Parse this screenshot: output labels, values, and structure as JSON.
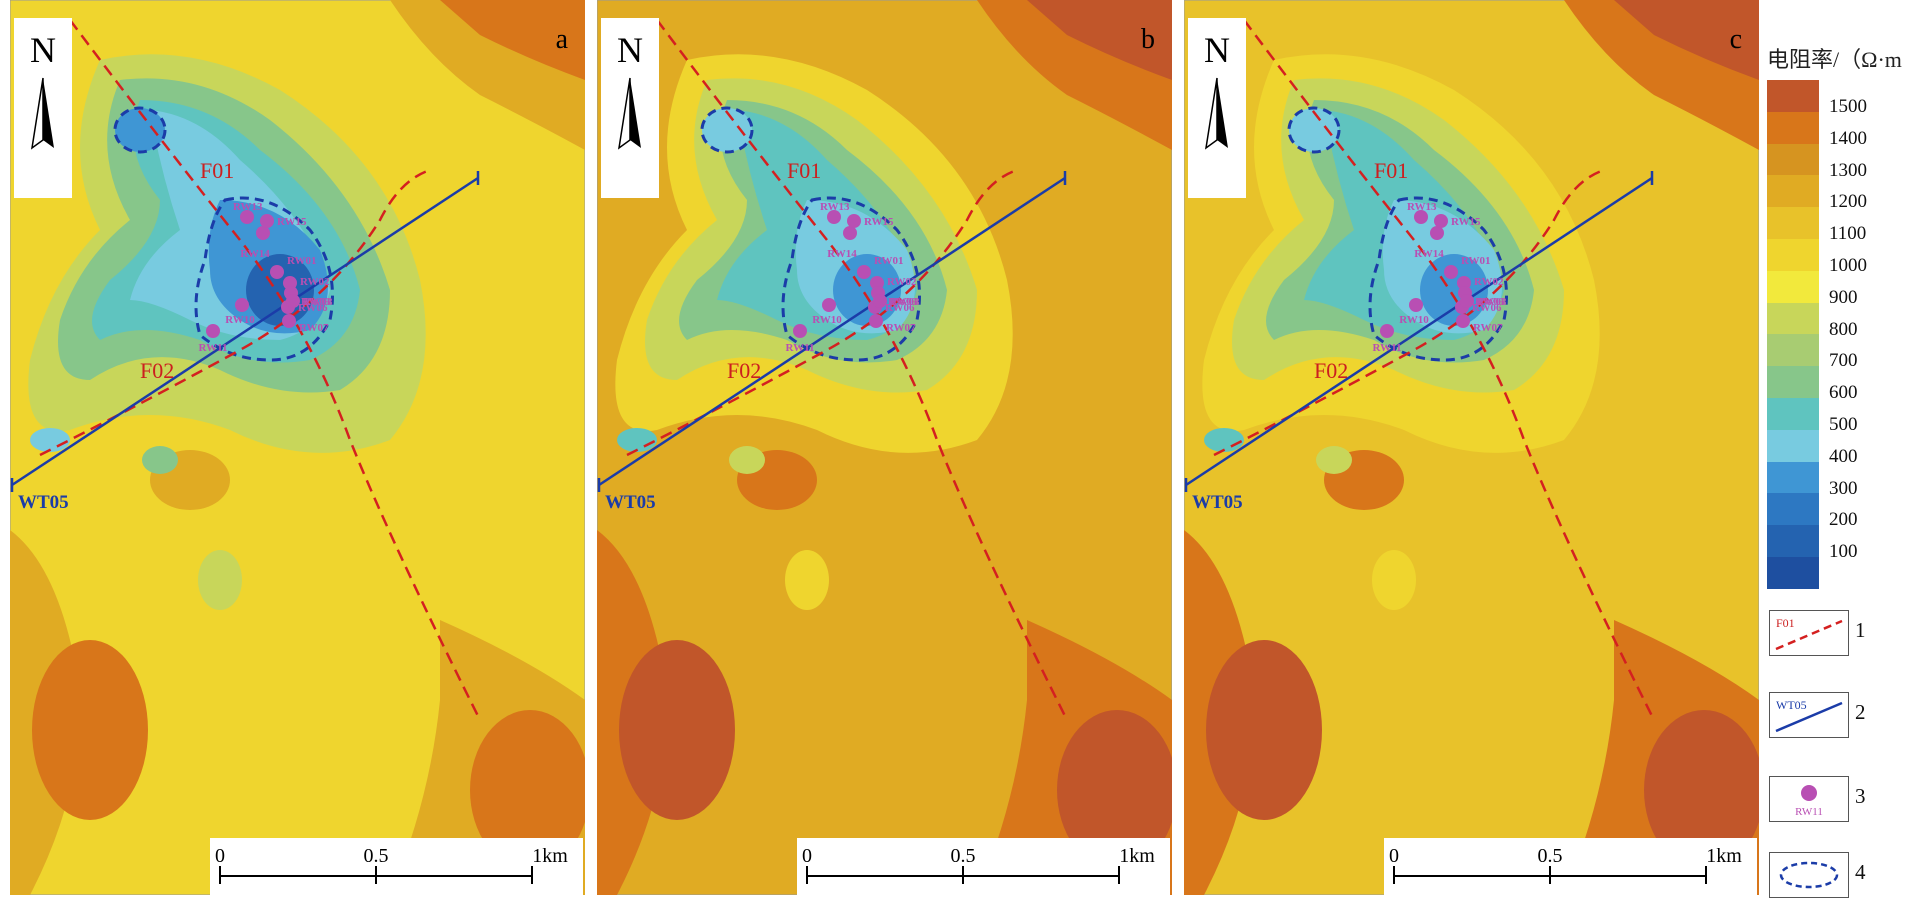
{
  "panels": [
    {
      "label": "a",
      "palette": "low"
    },
    {
      "label": "b",
      "palette": "high"
    },
    {
      "label": "c",
      "palette": "mid"
    }
  ],
  "north_label": "N",
  "faults": {
    "f01": "F01",
    "f02": "F02"
  },
  "survey_line": "WT05",
  "boreholes": [
    "RW13",
    "RW14",
    "RW15",
    "RW01",
    "RW02",
    "RW03",
    "RW06",
    "RW07",
    "RW08",
    "RW10",
    "RW11"
  ],
  "scale": {
    "zero": "0",
    "mid": "0.5",
    "end": "1km"
  },
  "legend": {
    "title": "电阻率/（Ω·m",
    "ticks": [
      "1500",
      "1400",
      "1300",
      "1200",
      "1100",
      "1000",
      "900",
      "800",
      "700",
      "600",
      "500",
      "400",
      "300",
      "200",
      "100"
    ],
    "colors": [
      "#c1562a",
      "#d8761a",
      "#d69420",
      "#e0ab23",
      "#e8c22a",
      "#efd52e",
      "#f2e93c",
      "#c8d65a",
      "#a8cc72",
      "#87c68a",
      "#5fc4bf",
      "#78cbe0",
      "#3f96d4",
      "#2d78c2",
      "#2463b0",
      "#1e4fa0"
    ],
    "symbols": [
      {
        "num": "1",
        "label": "F01"
      },
      {
        "num": "2",
        "label": "WT05"
      },
      {
        "num": "3",
        "label": "RW11"
      },
      {
        "num": "4",
        "label": ""
      }
    ]
  },
  "palettes": {
    "low": {
      "bg": "#efd52e",
      "c1": "#c8d65a",
      "c2": "#87c68a",
      "c3": "#5fc4bf",
      "c4": "#78cbe0",
      "c5": "#3f96d4",
      "c6": "#2463b0",
      "hi1": "#e0ab23",
      "hi2": "#d8761a"
    },
    "high": {
      "bg": "#e0ab23",
      "c1": "#efd52e",
      "c2": "#c8d65a",
      "c3": "#87c68a",
      "c4": "#5fc4bf",
      "c5": "#78cbe0",
      "c6": "#3f96d4",
      "hi1": "#d8761a",
      "hi2": "#c1562a"
    },
    "mid": {
      "bg": "#e8c22a",
      "c1": "#efd52e",
      "c2": "#c8d65a",
      "c3": "#87c68a",
      "c4": "#5fc4bf",
      "c5": "#78cbe0",
      "c6": "#3f96d4",
      "hi1": "#d8761a",
      "hi2": "#c1562a"
    }
  }
}
